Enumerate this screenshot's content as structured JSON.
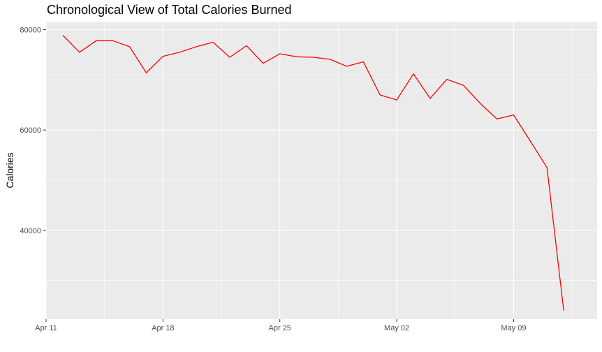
{
  "chart_data": {
    "type": "line",
    "title": "Chronological View of Total Calories Burned",
    "xlabel": "",
    "ylabel": "Calories",
    "x_tick_labels": [
      {
        "date": "2016-04-11",
        "label": "Apr 11"
      },
      {
        "date": "2016-04-18",
        "label": "Apr 18"
      },
      {
        "date": "2016-04-25",
        "label": "Apr 25"
      },
      {
        "date": "2016-05-02",
        "label": "May 02"
      },
      {
        "date": "2016-05-09",
        "label": "May 09"
      }
    ],
    "y_tick_labels": [
      {
        "value": 40000,
        "label": "40000"
      },
      {
        "value": 60000,
        "label": "60000"
      },
      {
        "value": 80000,
        "label": "80000"
      }
    ],
    "xlim": [
      "2016-04-11",
      "2016-05-14"
    ],
    "ylim": [
      22300,
      81600
    ],
    "grid": true,
    "line_color": "#ff0000",
    "panel_background": "#ebebeb",
    "grid_color": "#ffffff",
    "series": [
      {
        "points": [
          {
            "x": "2016-04-12",
            "y": 78900
          },
          {
            "x": "2016-04-13",
            "y": 75500
          },
          {
            "x": "2016-04-14",
            "y": 77800
          },
          {
            "x": "2016-04-15",
            "y": 77800
          },
          {
            "x": "2016-04-16",
            "y": 76600
          },
          {
            "x": "2016-04-17",
            "y": 71400
          },
          {
            "x": "2016-04-18",
            "y": 74700
          },
          {
            "x": "2016-04-19",
            "y": 75500
          },
          {
            "x": "2016-04-20",
            "y": 76600
          },
          {
            "x": "2016-04-21",
            "y": 77500
          },
          {
            "x": "2016-04-22",
            "y": 74500
          },
          {
            "x": "2016-04-23",
            "y": 76800
          },
          {
            "x": "2016-04-24",
            "y": 73300
          },
          {
            "x": "2016-04-25",
            "y": 75200
          },
          {
            "x": "2016-04-26",
            "y": 74600
          },
          {
            "x": "2016-04-27",
            "y": 74500
          },
          {
            "x": "2016-04-28",
            "y": 74100
          },
          {
            "x": "2016-04-29",
            "y": 72700
          },
          {
            "x": "2016-04-30",
            "y": 73600
          },
          {
            "x": "2016-05-01",
            "y": 67000
          },
          {
            "x": "2016-05-02",
            "y": 66000
          },
          {
            "x": "2016-05-03",
            "y": 71200
          },
          {
            "x": "2016-05-04",
            "y": 66300
          },
          {
            "x": "2016-05-05",
            "y": 70100
          },
          {
            "x": "2016-05-06",
            "y": 68900
          },
          {
            "x": "2016-05-07",
            "y": 65300
          },
          {
            "x": "2016-05-08",
            "y": 62200
          },
          {
            "x": "2016-05-09",
            "y": 63000
          },
          {
            "x": "2016-05-10",
            "y": 57800
          },
          {
            "x": "2016-05-11",
            "y": 52500
          },
          {
            "x": "2016-05-12",
            "y": 24000
          }
        ]
      }
    ]
  }
}
